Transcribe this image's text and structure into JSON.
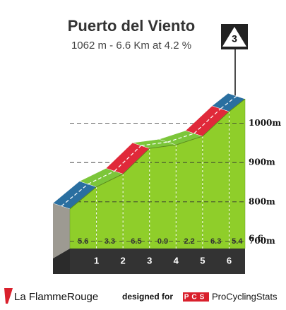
{
  "title": "Puerto del Viento",
  "subtitle": "1062 m - 6.6 Km at 4.2 %",
  "category": "3",
  "chart_data": {
    "type": "climb-profile",
    "x": [
      0,
      1,
      2,
      3,
      4,
      5,
      6,
      6.6
    ],
    "elevations": [
      782,
      838,
      871,
      936,
      945,
      967,
      1030,
      1062
    ],
    "gradients": [
      5.6,
      3.3,
      6.5,
      0.9,
      2.2,
      6.3,
      5.4
    ],
    "segment_colors": [
      "#2a6fa0",
      "#7cc63a",
      "#e0293a",
      "#7cc63a",
      "#7cc63a",
      "#e0293a",
      "#2a6fa0"
    ],
    "face_color": "#8fce2a",
    "ylim": [
      600,
      1100
    ],
    "yticks": [
      {
        "value": 700,
        "label": "700m"
      },
      {
        "value": 800,
        "label": "800m"
      },
      {
        "value": 900,
        "label": "900m"
      },
      {
        "value": 1000,
        "label": "1000m"
      }
    ],
    "grid": true
  },
  "footer": {
    "brand": "La FlammeRouge",
    "designed_for": "designed for",
    "pcs_logo": "PCS",
    "pcs_name": "ProCyclingStats"
  }
}
